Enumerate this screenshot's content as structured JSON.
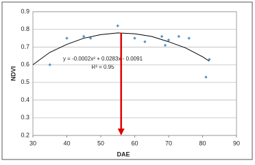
{
  "chart_data": {
    "type": "scatter",
    "x_label": "DAE",
    "y_label": "NDVI",
    "x": [
      35,
      40,
      45,
      47,
      55,
      60,
      63,
      68,
      69,
      70,
      73,
      76,
      81,
      82
    ],
    "series": [
      {
        "color": "#4f94cd",
        "values": [
          0.6,
          0.75,
          0.76,
          0.75,
          0.82,
          0.75,
          0.73,
          0.76,
          0.71,
          0.74,
          0.76,
          0.75,
          0.53,
          0.63
        ]
      }
    ],
    "trendline": {
      "color": "#000000",
      "x": [
        30,
        35,
        40,
        45,
        50,
        55,
        60,
        65,
        70,
        75,
        80,
        82
      ],
      "values": [
        0.6,
        0.67,
        0.715,
        0.75,
        0.77,
        0.78,
        0.775,
        0.76,
        0.73,
        0.695,
        0.645,
        0.62
      ]
    },
    "equation": "y = -0.0002x² + 0.0283x - 0.0091",
    "r_squared": "R² = 0.95",
    "arrow": {
      "color": "#e00000",
      "x": 56,
      "from": 0.78,
      "to": 0.2
    },
    "xlim": [
      30,
      90
    ],
    "xticks": [
      30,
      40,
      50,
      60,
      70,
      80,
      90
    ],
    "ylim": [
      0.2,
      0.9
    ],
    "yticks": [
      0.2,
      0.3,
      0.4,
      0.5,
      0.6,
      0.7,
      0.8,
      0.9
    ],
    "grid": true
  }
}
